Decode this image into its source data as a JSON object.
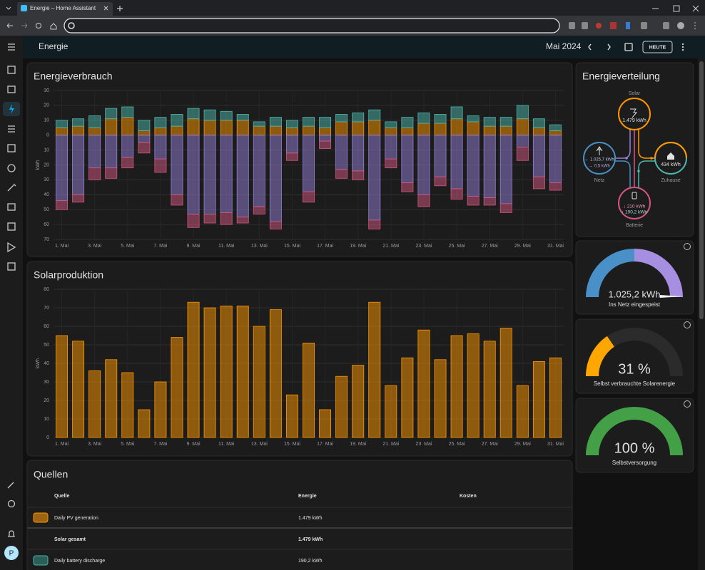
{
  "browser": {
    "tab_title": "Energie – Home Assistant"
  },
  "sidebar": {
    "avatar": "P"
  },
  "header": {
    "title": "Energie",
    "period": "Mai 2024",
    "today_button": "HEUTE"
  },
  "chart_data": [
    {
      "type": "bar",
      "title": "Energieverbrauch",
      "y_label": "kWh",
      "stacked": true,
      "categories": [
        "1. Mai",
        null,
        "3. Mai",
        null,
        "5. Mai",
        null,
        "7. Mai",
        null,
        "9. Mai",
        null,
        "11. Mai",
        null,
        "13. Mai",
        null,
        "15. Mai",
        null,
        "17. Mai",
        null,
        "19. Mai",
        null,
        "21. Mai",
        null,
        "23. Mai",
        null,
        "25. Mai",
        null,
        "27. Mai",
        null,
        "29. Mai",
        null,
        "31. Mai"
      ],
      "series": [
        {
          "color": "#ff9800",
          "values": [
            5,
            6,
            5,
            11,
            12,
            3,
            5,
            6,
            11,
            10,
            10,
            10,
            6,
            6,
            5,
            6,
            5,
            9,
            9,
            10,
            5,
            5,
            8,
            8,
            11,
            9,
            6,
            6,
            11,
            5,
            3
          ]
        },
        {
          "color": "#4db6ac",
          "values": [
            5,
            5,
            8,
            7,
            7,
            7,
            7,
            8,
            7,
            7,
            6,
            4,
            3,
            6,
            5,
            6,
            7,
            5,
            6,
            7,
            4,
            7,
            7,
            6,
            8,
            4,
            6,
            6,
            9,
            6,
            4
          ]
        },
        {
          "color": "#9580d6",
          "values": [
            -44,
            -40,
            -22,
            -22,
            -15,
            -5,
            -16,
            -40,
            -53,
            -53,
            -52,
            -55,
            -48,
            -58,
            -12,
            -38,
            -4,
            -23,
            -24,
            -57,
            -16,
            -32,
            -40,
            -28,
            -36,
            -41,
            -42,
            -46,
            -8,
            -28,
            -32
          ]
        },
        {
          "color": "#d4577f",
          "values": [
            -6,
            -5,
            -8,
            -7,
            -7,
            -7,
            -9,
            -7,
            -9,
            -6,
            -8,
            -4,
            -5,
            -5,
            -5,
            -7,
            -5,
            -6,
            -6,
            -6,
            -6,
            -6,
            -8,
            -6,
            -7,
            -6,
            -5,
            -6,
            -9,
            -8,
            -5
          ]
        }
      ],
      "ylim": [
        -70,
        30
      ],
      "yticks": [
        30,
        20,
        10,
        0,
        {
          "value": -10,
          "label": "10"
        },
        {
          "value": -20,
          "label": "20"
        },
        {
          "value": -30,
          "label": "30"
        },
        {
          "value": -40,
          "label": "40"
        },
        {
          "value": -50,
          "label": "50"
        },
        {
          "value": -60,
          "label": "60"
        },
        {
          "value": -70,
          "label": "70"
        }
      ],
      "grid": true
    },
    {
      "type": "bar",
      "title": "Solarproduktion",
      "y_label": "kWh",
      "categories": [
        "1. Mai",
        null,
        "3. Mai",
        null,
        "5. Mai",
        null,
        "7. Mai",
        null,
        "9. Mai",
        null,
        "11. Mai",
        null,
        "13. Mai",
        null,
        "15. Mai",
        null,
        "17. Mai",
        null,
        "19. Mai",
        null,
        "21. Mai",
        null,
        "23. Mai",
        null,
        "25. Mai",
        null,
        "27. Mai",
        null,
        "29. Mai",
        null,
        "31. Mai"
      ],
      "series": [
        {
          "color": "#ff9800",
          "values": [
            55,
            52,
            36,
            42,
            35,
            15,
            30,
            54,
            73,
            70,
            71,
            71,
            60,
            69,
            23,
            51,
            15,
            33,
            39,
            73,
            28,
            43,
            58,
            42,
            55,
            56,
            52,
            59,
            28,
            41,
            43
          ]
        }
      ],
      "ylim": [
        0,
        80
      ],
      "yticks": [
        0,
        10,
        20,
        30,
        40,
        50,
        60,
        70,
        80
      ],
      "grid": true
    }
  ],
  "distribution": {
    "title": "Energieverteilung",
    "solar": {
      "label": "Solar",
      "value": "1.479 kWh"
    },
    "grid": {
      "label": "Netz",
      "from_grid": "← 1.025,7 kWh",
      "to_grid": "→ 0,5 kWh"
    },
    "home": {
      "label": "Zuhause",
      "value": "434 kWh"
    },
    "battery": {
      "label": "Batterie",
      "to_battery": "↓ 210 kWh",
      "from_battery": "↑ 190,2 kWh"
    }
  },
  "gauges": [
    {
      "value_label": "1.025,2 kWh",
      "caption": "Ins Netz eingespeist"
    },
    {
      "value": 31,
      "value_label": "31 %",
      "caption": "Selbst verbrauchte Solarenergie",
      "range": [
        0,
        100
      ],
      "color": "#ffa600"
    },
    {
      "value": 100,
      "value_label": "100 %",
      "caption": "Selbstversorgung",
      "range": [
        0,
        100
      ],
      "color": "#43a047"
    }
  ],
  "sources": {
    "title": "Quellen",
    "columns": [
      "Quelle",
      "Energie",
      "Kosten"
    ],
    "rows": [
      [
        "Daily PV generation",
        "1.479 kWh"
      ],
      [
        "Solar gesamt",
        "1.479 kWh"
      ],
      [
        "Daily battery discharge",
        "190,2 kWh"
      ]
    ]
  }
}
